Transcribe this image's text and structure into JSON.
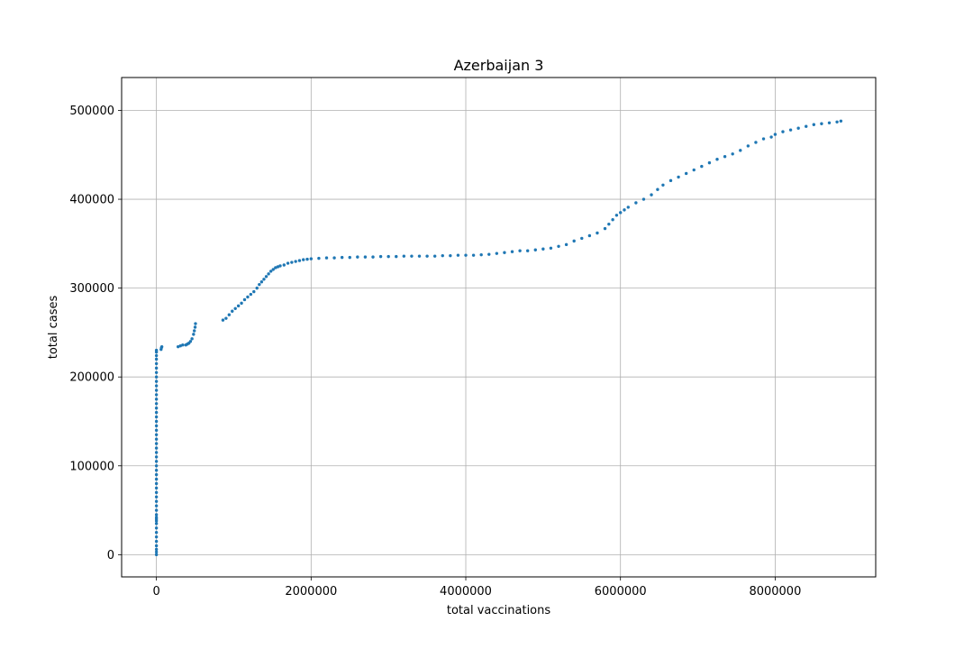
{
  "chart_data": {
    "type": "scatter",
    "title": "Azerbaijan 3",
    "xlabel": "total vaccinations",
    "ylabel": "total cases",
    "xlim": [
      -450000,
      9300000
    ],
    "ylim": [
      -25000,
      537000
    ],
    "x_ticks": [
      0,
      2000000,
      4000000,
      6000000,
      8000000
    ],
    "x_tick_labels": [
      "0",
      "2000000",
      "4000000",
      "6000000",
      "8000000"
    ],
    "y_ticks": [
      0,
      100000,
      200000,
      300000,
      400000,
      500000
    ],
    "y_tick_labels": [
      "0",
      "100000",
      "200000",
      "300000",
      "400000",
      "500000"
    ],
    "grid": true,
    "marker_color": "#1f77b4",
    "series": [
      {
        "name": "",
        "points": [
          [
            0,
            0
          ],
          [
            0,
            3000
          ],
          [
            0,
            6000
          ],
          [
            0,
            10000
          ],
          [
            0,
            15000
          ],
          [
            0,
            20000
          ],
          [
            0,
            25000
          ],
          [
            0,
            30000
          ],
          [
            0,
            35000
          ],
          [
            0,
            38000
          ],
          [
            0,
            40000
          ],
          [
            0,
            42000
          ],
          [
            0,
            45000
          ],
          [
            0,
            50000
          ],
          [
            0,
            55000
          ],
          [
            0,
            60000
          ],
          [
            0,
            65000
          ],
          [
            0,
            70000
          ],
          [
            0,
            75000
          ],
          [
            0,
            80000
          ],
          [
            0,
            85000
          ],
          [
            0,
            90000
          ],
          [
            0,
            95000
          ],
          [
            0,
            100000
          ],
          [
            0,
            105000
          ],
          [
            0,
            110000
          ],
          [
            0,
            115000
          ],
          [
            0,
            120000
          ],
          [
            0,
            125000
          ],
          [
            0,
            130000
          ],
          [
            0,
            135000
          ],
          [
            0,
            140000
          ],
          [
            0,
            145000
          ],
          [
            0,
            150000
          ],
          [
            0,
            155000
          ],
          [
            0,
            160000
          ],
          [
            0,
            165000
          ],
          [
            0,
            170000
          ],
          [
            0,
            175000
          ],
          [
            0,
            180000
          ],
          [
            0,
            185000
          ],
          [
            0,
            190000
          ],
          [
            0,
            195000
          ],
          [
            0,
            200000
          ],
          [
            0,
            205000
          ],
          [
            0,
            210000
          ],
          [
            0,
            215000
          ],
          [
            0,
            220000
          ],
          [
            0,
            224000
          ],
          [
            0,
            228000
          ],
          [
            0,
            230000
          ],
          [
            60000,
            231000
          ],
          [
            65000,
            233000
          ],
          [
            70000,
            234000
          ],
          [
            280000,
            234000
          ],
          [
            310000,
            235000
          ],
          [
            340000,
            236000
          ],
          [
            380000,
            236000
          ],
          [
            400000,
            237000
          ],
          [
            420000,
            238000
          ],
          [
            440000,
            240000
          ],
          [
            460000,
            243000
          ],
          [
            480000,
            248000
          ],
          [
            490000,
            252000
          ],
          [
            500000,
            256000
          ],
          [
            505000,
            260000
          ],
          [
            860000,
            264000
          ],
          [
            900000,
            266000
          ],
          [
            940000,
            270000
          ],
          [
            980000,
            274000
          ],
          [
            1020000,
            277000
          ],
          [
            1060000,
            280000
          ],
          [
            1100000,
            283000
          ],
          [
            1140000,
            287000
          ],
          [
            1180000,
            290000
          ],
          [
            1220000,
            293000
          ],
          [
            1260000,
            296000
          ],
          [
            1300000,
            300000
          ],
          [
            1330000,
            304000
          ],
          [
            1360000,
            307000
          ],
          [
            1390000,
            310000
          ],
          [
            1420000,
            313000
          ],
          [
            1450000,
            316000
          ],
          [
            1480000,
            319000
          ],
          [
            1510000,
            321000
          ],
          [
            1540000,
            323000
          ],
          [
            1570000,
            324000
          ],
          [
            1600000,
            325000
          ],
          [
            1650000,
            326000
          ],
          [
            1700000,
            328000
          ],
          [
            1750000,
            329000
          ],
          [
            1800000,
            330000
          ],
          [
            1850000,
            331000
          ],
          [
            1900000,
            332000
          ],
          [
            1950000,
            332500
          ],
          [
            2000000,
            333000
          ],
          [
            2100000,
            333500
          ],
          [
            2200000,
            334000
          ],
          [
            2300000,
            334000
          ],
          [
            2400000,
            334500
          ],
          [
            2500000,
            334500
          ],
          [
            2600000,
            335000
          ],
          [
            2700000,
            335000
          ],
          [
            2800000,
            335000
          ],
          [
            2900000,
            335500
          ],
          [
            3000000,
            335500
          ],
          [
            3100000,
            335500
          ],
          [
            3200000,
            336000
          ],
          [
            3300000,
            336000
          ],
          [
            3400000,
            336000
          ],
          [
            3500000,
            336000
          ],
          [
            3600000,
            336000
          ],
          [
            3700000,
            336500
          ],
          [
            3800000,
            336500
          ],
          [
            3900000,
            337000
          ],
          [
            4000000,
            337000
          ],
          [
            4100000,
            337000
          ],
          [
            4200000,
            337500
          ],
          [
            4300000,
            338000
          ],
          [
            4400000,
            339000
          ],
          [
            4500000,
            340000
          ],
          [
            4600000,
            341000
          ],
          [
            4700000,
            342000
          ],
          [
            4800000,
            342000
          ],
          [
            4900000,
            343000
          ],
          [
            5000000,
            344000
          ],
          [
            5100000,
            345000
          ],
          [
            5200000,
            347000
          ],
          [
            5300000,
            349000
          ],
          [
            5400000,
            353000
          ],
          [
            5500000,
            356000
          ],
          [
            5600000,
            359000
          ],
          [
            5700000,
            362000
          ],
          [
            5800000,
            367000
          ],
          [
            5850000,
            372000
          ],
          [
            5900000,
            377000
          ],
          [
            5950000,
            382000
          ],
          [
            6000000,
            385000
          ],
          [
            6050000,
            388000
          ],
          [
            6100000,
            391000
          ],
          [
            6200000,
            396000
          ],
          [
            6300000,
            400000
          ],
          [
            6400000,
            405000
          ],
          [
            6480000,
            411000
          ],
          [
            6550000,
            416000
          ],
          [
            6650000,
            421000
          ],
          [
            6750000,
            425000
          ],
          [
            6850000,
            429000
          ],
          [
            6950000,
            433000
          ],
          [
            7050000,
            437000
          ],
          [
            7150000,
            441000
          ],
          [
            7250000,
            445000
          ],
          [
            7350000,
            448000
          ],
          [
            7450000,
            451000
          ],
          [
            7550000,
            455000
          ],
          [
            7650000,
            460000
          ],
          [
            7750000,
            464000
          ],
          [
            7850000,
            468000
          ],
          [
            7950000,
            470000
          ],
          [
            8000000,
            473000
          ],
          [
            8100000,
            476000
          ],
          [
            8200000,
            478000
          ],
          [
            8300000,
            480000
          ],
          [
            8400000,
            482000
          ],
          [
            8500000,
            484000
          ],
          [
            8600000,
            485000
          ],
          [
            8700000,
            486000
          ],
          [
            8800000,
            487000
          ],
          [
            8850000,
            488000
          ]
        ]
      }
    ]
  }
}
